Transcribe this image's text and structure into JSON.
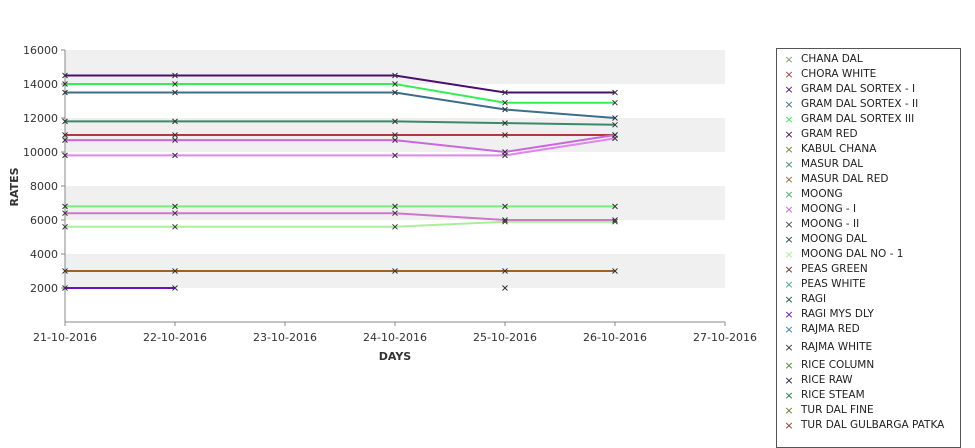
{
  "chart_data": {
    "type": "line",
    "xlabel": "DAYS",
    "ylabel": "RATES",
    "x_ticks": [
      "21-10-2016",
      "22-10-2016",
      "23-10-2016",
      "24-10-2016",
      "25-10-2016",
      "26-10-2016",
      "27-10-2016"
    ],
    "ylim": [
      0,
      16000
    ],
    "y_ticks": [
      2000,
      4000,
      6000,
      8000,
      10000,
      12000,
      14000,
      16000
    ],
    "point_x": [
      "21-10-2016",
      "22-10-2016",
      "24-10-2016",
      "25-10-2016",
      "26-10-2016"
    ],
    "grid": "alternating horizontal bands",
    "legend_position": "right",
    "series": [
      {
        "name": "CHANA DAL",
        "color": "#7a9c6e",
        "values": [
          null,
          null,
          null,
          null,
          null
        ]
      },
      {
        "name": "CHORA WHITE",
        "color": "#b03a3a",
        "values": [
          11000,
          11000,
          11000,
          11000,
          11000
        ]
      },
      {
        "name": "GRAM DAL SORTEX  - I",
        "color": "#4b0f6e",
        "values": [
          14500,
          14500,
          14500,
          13500,
          13500
        ]
      },
      {
        "name": "GRAM DAL SORTEX - II",
        "color": "#3b6e8a",
        "values": [
          13500,
          13500,
          13500,
          12500,
          12000
        ]
      },
      {
        "name": "GRAM DAL SORTEX III",
        "color": "#33ee55",
        "values": [
          14000,
          14000,
          14000,
          12900,
          12900
        ]
      },
      {
        "name": "GRAM RED",
        "color": "#4a0a6a",
        "values": [
          null,
          null,
          null,
          null,
          null
        ]
      },
      {
        "name": "KABUL CHANA",
        "color": "#8a7a2a",
        "values": [
          null,
          null,
          null,
          null,
          null
        ]
      },
      {
        "name": "MASUR DAL",
        "color": "#3a8a6a",
        "values": [
          11800,
          11800,
          11800,
          11700,
          11600
        ]
      },
      {
        "name": "MASUR DAL RED",
        "color": "#a0602a",
        "values": [
          3000,
          3000,
          3000,
          3000,
          3000
        ]
      },
      {
        "name": "MOONG",
        "color": "#44aa55",
        "values": [
          null,
          null,
          null,
          null,
          null
        ]
      },
      {
        "name": "MOONG - I",
        "color": "#cc66dd",
        "values": [
          10700,
          10700,
          10700,
          10000,
          11000
        ]
      },
      {
        "name": "MOONG - II",
        "color": "#444444",
        "values": [
          null,
          null,
          null,
          null,
          null
        ]
      },
      {
        "name": "MOONG DAL",
        "color": "#1a4a3a",
        "values": [
          null,
          null,
          null,
          null,
          null
        ]
      },
      {
        "name": "MOONG DAL NO - 1",
        "color": "#aaee99",
        "values": [
          5600,
          5600,
          5600,
          5900,
          5900
        ]
      },
      {
        "name": "PEAS GREEN",
        "color": "#6a2a2a",
        "values": [
          null,
          null,
          null,
          null,
          null
        ]
      },
      {
        "name": "PEAS WHITE",
        "color": "#33aa88",
        "values": [
          null,
          null,
          null,
          null,
          null
        ]
      },
      {
        "name": "RAGI",
        "color": "#0a5a3a",
        "values": [
          null,
          null,
          null,
          null,
          null
        ]
      },
      {
        "name": "RAGI MYS DLY",
        "color": "#6a11bb",
        "values": [
          2000,
          2000,
          null,
          2000,
          null
        ]
      },
      {
        "name": "RAJMA RED",
        "color": "#3a7aaa",
        "values": [
          null,
          null,
          null,
          null,
          null
        ]
      },
      {
        "name": "RAJMA WHITE",
        "color": "#333344",
        "values": [
          null,
          null,
          null,
          null,
          null
        ]
      },
      {
        "name": "RICE COLUMN",
        "color": "#4a8a2a",
        "values": [
          null,
          null,
          null,
          null,
          null
        ]
      },
      {
        "name": "RICE RAW",
        "color": "#1a1a5a",
        "values": [
          null,
          null,
          null,
          null,
          null
        ]
      },
      {
        "name": "RICE STEAM",
        "color": "#1a7a3a",
        "values": [
          null,
          null,
          null,
          null,
          null
        ]
      },
      {
        "name": "TUR DAL FINE",
        "color": "#5a7a2a",
        "values": [
          null,
          null,
          null,
          null,
          null
        ]
      },
      {
        "name": "TUR DAL GULBARGA PATKA",
        "color": "#8a3a2a",
        "values": [
          null,
          null,
          null,
          null,
          null
        ]
      }
    ],
    "extra_series_colors": [
      "#dd88ee",
      "#77ee77",
      "#cc77cc"
    ],
    "extra_series": [
      {
        "color": "#dd88ee",
        "values": [
          9800,
          9800,
          9800,
          9800,
          10800
        ]
      },
      {
        "color": "#77ee77",
        "values": [
          6800,
          6800,
          6800,
          6800,
          6800
        ]
      },
      {
        "color": "#cc77cc",
        "values": [
          6400,
          6400,
          6400,
          6000,
          6000
        ]
      }
    ]
  }
}
